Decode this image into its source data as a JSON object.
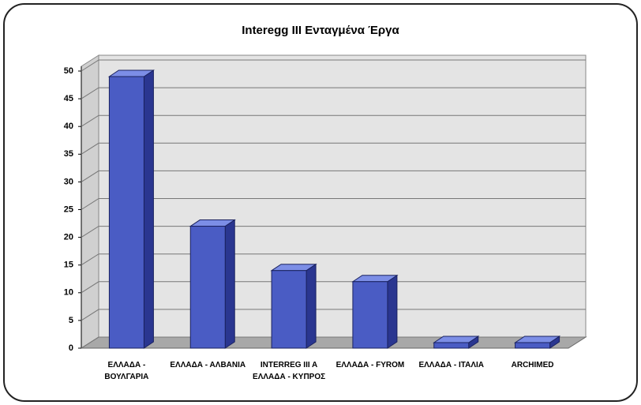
{
  "chart_data": {
    "type": "bar3d",
    "title": "Interegg III Ενταγμένα Έργα",
    "categories": [
      "ΕΛΛΑΔΑ - ΒΟΥΛΓΑΡΙΑ",
      "ΕΛΛΑΔΑ - ΑΛΒΑΝΙΑ",
      "INTERREG III A ΕΛΛΑΔΑ - ΚΥΠΡΟΣ",
      "ΕΛΛΑΔΑ - FYROM",
      "ΕΛΛΑΔΑ - ΙΤΑΛΙΑ",
      "ARCHIMED"
    ],
    "values": [
      49,
      22,
      14,
      12,
      1,
      1
    ],
    "color": "#4a5cc4",
    "ylim": [
      0,
      50
    ],
    "yticks": [
      0,
      5,
      10,
      15,
      20,
      25,
      30,
      35,
      40,
      45,
      50
    ],
    "grid": true
  }
}
